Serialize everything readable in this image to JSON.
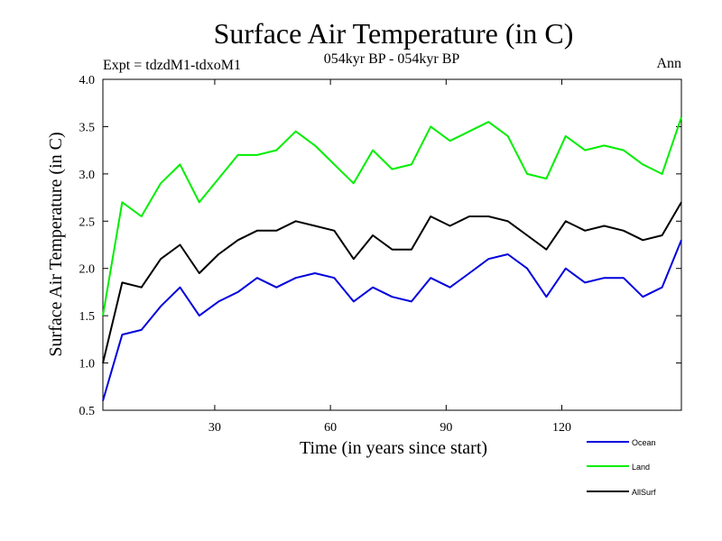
{
  "chart_data": {
    "type": "line",
    "title": "Surface Air Temperature (in C)",
    "subtitle_left": "Expt = tdzdM1-tdxoM1",
    "subtitle_center": "054kyr BP - 054kyr BP",
    "subtitle_right": "Ann",
    "xlabel": "Time (in years since start)",
    "ylabel": "Surface Air Temperature (in C)",
    "xlim": [
      1,
      151
    ],
    "ylim": [
      0.5,
      4.0
    ],
    "xticks": [
      30,
      60,
      90,
      120
    ],
    "xtick_labels": [
      "30",
      "60",
      "90",
      "120"
    ],
    "yticks": [
      0.5,
      1.0,
      1.5,
      2.0,
      2.5,
      3.0,
      3.5,
      4.0
    ],
    "ytick_labels": [
      "0.5",
      "1.0",
      "1.5",
      "2.0",
      "2.5",
      "3.0",
      "3.5",
      "4.0"
    ],
    "legend_position": "bottom-right",
    "series": [
      {
        "name": "Ocean",
        "color": "#0000dd",
        "x_start": 1,
        "x_step": 5,
        "values": [
          0.6,
          1.3,
          1.35,
          1.6,
          1.8,
          1.5,
          1.65,
          1.75,
          1.9,
          1.8,
          1.9,
          1.95,
          1.9,
          1.65,
          1.8,
          1.7,
          1.65,
          1.9,
          1.8,
          1.95,
          2.1,
          2.15,
          2.0,
          1.7,
          2.0,
          1.85,
          1.9,
          1.9,
          1.7,
          1.8,
          2.3
        ]
      },
      {
        "name": "Land",
        "color": "#00ee00",
        "x_start": 1,
        "x_step": 5,
        "values": [
          1.5,
          2.7,
          2.55,
          2.9,
          3.1,
          2.7,
          2.95,
          3.2,
          3.2,
          3.25,
          3.45,
          3.3,
          3.1,
          2.9,
          3.25,
          3.05,
          3.1,
          3.5,
          3.35,
          3.45,
          3.55,
          3.4,
          3.0,
          2.95,
          3.4,
          3.25,
          3.3,
          3.25,
          3.1,
          3.0,
          3.6
        ]
      },
      {
        "name": "AllSurf",
        "color": "#000000",
        "x_start": 1,
        "x_step": 5,
        "values": [
          1.0,
          1.85,
          1.8,
          2.1,
          2.25,
          1.95,
          2.15,
          2.3,
          2.4,
          2.4,
          2.5,
          2.45,
          2.4,
          2.1,
          2.35,
          2.2,
          2.2,
          2.55,
          2.45,
          2.55,
          2.55,
          2.5,
          2.35,
          2.2,
          2.5,
          2.4,
          2.45,
          2.4,
          2.3,
          2.35,
          2.7
        ]
      }
    ]
  }
}
